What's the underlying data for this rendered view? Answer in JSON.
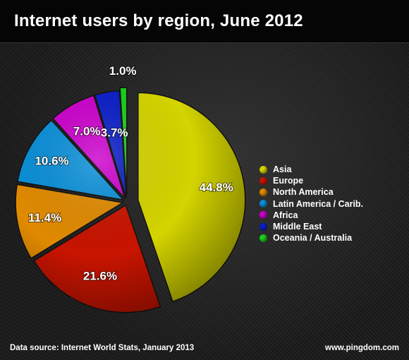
{
  "header": {
    "title": "Internet users by region, June 2012"
  },
  "chart_data": {
    "type": "pie",
    "title": "Internet users by region, June 2012",
    "categories": [
      "Asia",
      "Europe",
      "North America",
      "Latin America / Carib.",
      "Africa",
      "Middle East",
      "Oceania / Australia"
    ],
    "values": [
      44.8,
      21.6,
      11.4,
      10.6,
      7.0,
      3.7,
      1.0
    ],
    "value_labels": [
      "44.8%",
      "21.6%",
      "11.4%",
      "10.6%",
      "7.0%",
      "3.7%",
      "1.0%"
    ],
    "colors": [
      "#d4d400",
      "#c81400",
      "#e08a00",
      "#0a8fd8",
      "#cc00cc",
      "#0a1ec8",
      "#18d018"
    ],
    "start_angle_deg": 0,
    "direction": "clockwise",
    "exploded": true,
    "legend_position": "right"
  },
  "footer": {
    "source": "Data source: Internet World Stats, January 2013",
    "credit": "www.pingdom.com"
  }
}
